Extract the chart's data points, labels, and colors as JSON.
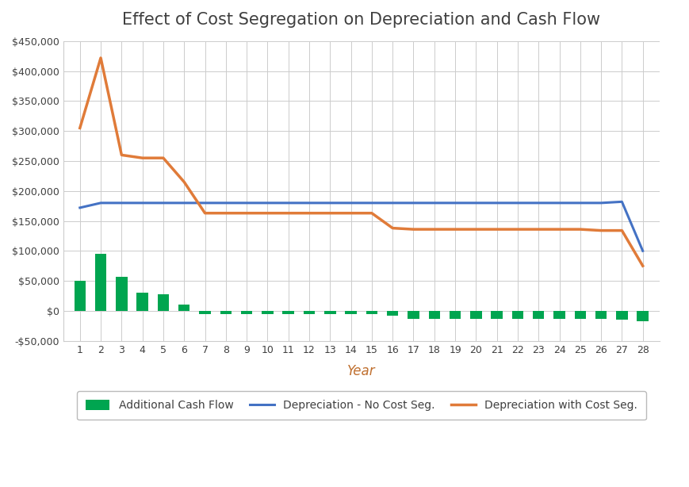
{
  "title": "Effect of Cost Segregation on Depreciation and Cash Flow",
  "xlabel": "Year",
  "years": [
    1,
    2,
    3,
    4,
    5,
    6,
    7,
    8,
    9,
    10,
    11,
    12,
    13,
    14,
    15,
    16,
    17,
    18,
    19,
    20,
    21,
    22,
    23,
    24,
    25,
    26,
    27,
    28
  ],
  "depr_no_cost_seg": [
    172000,
    180000,
    180000,
    180000,
    180000,
    180000,
    180000,
    180000,
    180000,
    180000,
    180000,
    180000,
    180000,
    180000,
    180000,
    180000,
    180000,
    180000,
    180000,
    180000,
    180000,
    180000,
    180000,
    180000,
    180000,
    180000,
    182000,
    100000
  ],
  "depr_with_cost_seg": [
    305000,
    422000,
    260000,
    255000,
    255000,
    215000,
    163000,
    163000,
    163000,
    163000,
    163000,
    163000,
    163000,
    163000,
    163000,
    138000,
    136000,
    136000,
    136000,
    136000,
    136000,
    136000,
    136000,
    136000,
    136000,
    134000,
    134000,
    75000
  ],
  "additional_cash_flow": [
    50000,
    95000,
    57000,
    30000,
    28000,
    10000,
    -6000,
    -6000,
    -6000,
    -6000,
    -6000,
    -6000,
    -6000,
    -6000,
    -6000,
    -8000,
    -13000,
    -13000,
    -13000,
    -13000,
    -13000,
    -13000,
    -13000,
    -13000,
    -13000,
    -13000,
    -15000,
    -18000
  ],
  "ylim": [
    -50000,
    450000
  ],
  "yticks": [
    -50000,
    0,
    50000,
    100000,
    150000,
    200000,
    250000,
    300000,
    350000,
    400000,
    450000
  ],
  "blue_color": "#4472C4",
  "orange_color": "#E07B39",
  "green_color": "#00A550",
  "background_color": "#FFFFFF",
  "grid_color": "#CCCCCC",
  "title_color": "#404040",
  "axis_label_color": "#C07030",
  "tick_color": "#404040",
  "legend_order": [
    "Additional Cash Flow",
    "Depreciation - No Cost Seg.",
    "Depreciation with Cost Seg."
  ]
}
